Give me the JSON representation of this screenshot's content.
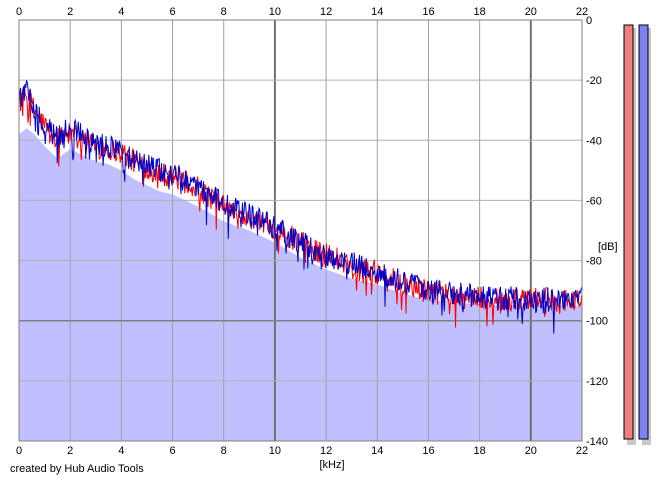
{
  "chart_data": {
    "type": "area",
    "title": "",
    "xlabel": "[kHz]",
    "ylabel": "[dB]",
    "xlim": [
      0,
      22
    ],
    "ylim": [
      -140,
      0
    ],
    "x_ticks": [
      "0",
      "2",
      "4",
      "6",
      "8",
      "10",
      "12",
      "14",
      "16",
      "18",
      "20",
      "22"
    ],
    "y_ticks": [
      "0",
      "-20",
      "-40",
      "-60",
      "-80",
      "-100",
      "-120",
      "-140"
    ],
    "grid": true,
    "background_color": "#ffffff",
    "fill_color": "#c0c0ff",
    "series": [
      {
        "color": "#ff0000",
        "x": [
          0.0,
          0.3,
          0.6,
          1.0,
          1.5,
          2.0,
          2.5,
          3.0,
          3.5,
          4.0,
          4.5,
          5.0,
          5.5,
          6.0,
          7.0,
          8.0,
          9.0,
          10.0,
          11.0,
          12.0,
          13.0,
          14.0,
          15.0,
          16.0,
          17.0,
          18.0,
          19.0,
          20.0,
          21.0,
          22.0
        ],
        "values": [
          -27,
          -25,
          -30,
          -35,
          -40,
          -37,
          -39,
          -42,
          -43,
          -44,
          -47,
          -49,
          -51,
          -52,
          -56,
          -62,
          -66,
          -69,
          -74,
          -78,
          -81,
          -84,
          -88,
          -90,
          -92,
          -92.5,
          -93,
          -93,
          -93,
          -93
        ]
      },
      {
        "color": "#0000cc",
        "x": [
          0.0,
          0.3,
          0.6,
          1.0,
          1.5,
          2.0,
          2.5,
          3.0,
          3.5,
          4.0,
          4.5,
          5.0,
          5.5,
          6.0,
          7.0,
          8.0,
          9.0,
          10.0,
          11.0,
          12.0,
          13.0,
          14.0,
          15.0,
          16.0,
          17.0,
          18.0,
          19.0,
          20.0,
          21.0,
          22.0
        ],
        "values": [
          -26,
          -24,
          -29,
          -34,
          -39,
          -36,
          -38,
          -41,
          -42,
          -44,
          -47,
          -48,
          -50,
          -51,
          -56,
          -61,
          -65,
          -69,
          -74,
          -78,
          -81,
          -84,
          -87,
          -90,
          -91,
          -92,
          -92.5,
          -93,
          -93,
          -92
        ]
      }
    ],
    "fill_envelope": {
      "x": [
        0.0,
        0.3,
        0.6,
        1.0,
        1.5,
        2.0,
        2.5,
        3.0,
        3.5,
        4.0,
        4.5,
        5.0,
        5.5,
        6.0,
        7.0,
        8.0,
        9.0,
        10.0,
        11.0,
        12.0,
        13.0,
        14.0,
        15.0,
        16.0,
        17.0,
        18.0,
        19.0,
        20.0,
        21.0,
        22.0
      ],
      "values": [
        -38,
        -36,
        -38,
        -42,
        -46,
        -43,
        -45,
        -47,
        -48,
        -50,
        -53,
        -55,
        -57,
        -58,
        -62,
        -67,
        -70,
        -74,
        -79,
        -83,
        -86,
        -88,
        -91,
        -93,
        -94,
        -94.5,
        -95,
        -95,
        -95,
        -95
      ]
    },
    "noise_amplitude_db": 4,
    "meters": [
      {
        "color": "#f08080",
        "level": 1.0
      },
      {
        "color": "#8080f0",
        "level": 1.0
      }
    ]
  },
  "credit_text": "created by Hub Audio Tools"
}
